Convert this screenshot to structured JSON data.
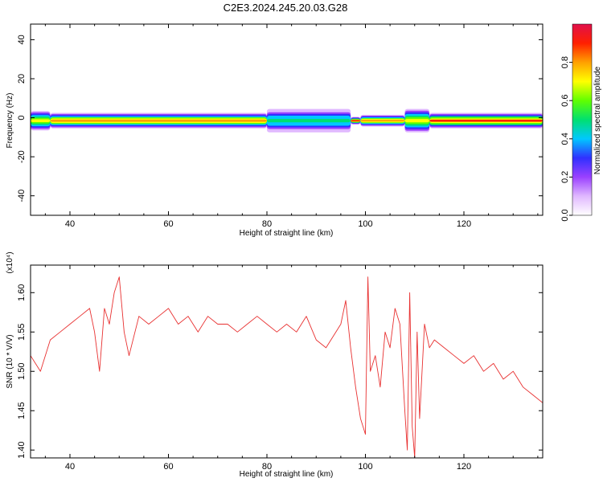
{
  "figure_title": "C2E3.2024.245.20.03.G28",
  "chart_data": [
    {
      "type": "heatmap",
      "xlabel": "Height of straight line (km)",
      "ylabel": "Frequency (Hz)",
      "xlim": [
        32,
        136
      ],
      "ylim": [
        -50,
        48
      ],
      "x_ticks": [
        40,
        60,
        80,
        100,
        120
      ],
      "y_ticks": [
        -40,
        -20,
        0,
        20,
        40
      ],
      "colorbar": {
        "label": "Normalized spectral amplitude",
        "range": [
          0,
          1
        ],
        "ticks": [
          0.0,
          0.2,
          0.4,
          0.6,
          0.8
        ],
        "tick_labels": [
          "0.0",
          "0.2",
          "0.4",
          "0.6",
          "0.8"
        ],
        "colormap": [
          "#ffffff",
          "#e0b8ff",
          "#9a40ff",
          "#3030ff",
          "#00c8ff",
          "#00e070",
          "#60ff00",
          "#ffff00",
          "#ffa000",
          "#ff2000",
          "#e0104a"
        ]
      },
      "ridge": {
        "frequency_hz": -1.5,
        "segments": [
          {
            "x": [
              32,
              36
            ],
            "spread_hz": 5,
            "peak": 0.75
          },
          {
            "x": [
              36,
              80
            ],
            "spread_hz": 4,
            "peak": 0.9
          },
          {
            "x": [
              80,
              97
            ],
            "spread_hz": 6,
            "peak": 0.55
          },
          {
            "x": [
              97,
              99
            ],
            "spread_hz": 2,
            "peak": 1.0
          },
          {
            "x": [
              99,
              108
            ],
            "spread_hz": 3,
            "peak": 0.92
          },
          {
            "x": [
              108,
              113
            ],
            "spread_hz": 6,
            "peak": 0.7
          },
          {
            "x": [
              113,
              136
            ],
            "spread_hz": 4,
            "peak": 0.95
          }
        ]
      }
    },
    {
      "type": "line",
      "xlabel": "Height of straight line (km)",
      "ylabel": "SNR (10 * V/V)",
      "multiplier": "(x10⁴)",
      "xlim": [
        32,
        136
      ],
      "ylim": [
        1.39,
        1.635
      ],
      "x_ticks": [
        40,
        60,
        80,
        100,
        120
      ],
      "y_ticks": [
        1.4,
        1.45,
        1.5,
        1.55,
        1.6
      ],
      "y_tick_labels": [
        "1.40",
        "1.45",
        "1.50",
        "1.55",
        "1.60"
      ],
      "series": [
        {
          "color": "#e83030",
          "x": [
            32,
            34,
            36,
            38,
            40,
            42,
            44,
            45,
            46,
            47,
            48,
            49,
            50,
            51,
            52,
            54,
            56,
            58,
            60,
            62,
            64,
            66,
            68,
            70,
            72,
            74,
            76,
            78,
            80,
            82,
            84,
            86,
            88,
            90,
            92,
            94,
            95,
            96,
            97,
            98,
            99,
            100,
            100.5,
            101,
            102,
            103,
            104,
            105,
            106,
            107,
            108,
            108.5,
            109,
            109.5,
            110,
            110.5,
            111,
            112,
            113,
            114,
            116,
            118,
            120,
            122,
            124,
            126,
            128,
            130,
            132,
            134,
            136
          ],
          "y": [
            1.52,
            1.5,
            1.54,
            1.55,
            1.56,
            1.57,
            1.58,
            1.55,
            1.5,
            1.58,
            1.56,
            1.6,
            1.62,
            1.55,
            1.52,
            1.57,
            1.56,
            1.57,
            1.58,
            1.56,
            1.57,
            1.55,
            1.57,
            1.56,
            1.56,
            1.55,
            1.56,
            1.57,
            1.56,
            1.55,
            1.56,
            1.55,
            1.57,
            1.54,
            1.53,
            1.55,
            1.56,
            1.59,
            1.53,
            1.48,
            1.44,
            1.42,
            1.62,
            1.5,
            1.52,
            1.48,
            1.55,
            1.53,
            1.58,
            1.56,
            1.45,
            1.4,
            1.6,
            1.43,
            1.39,
            1.55,
            1.44,
            1.56,
            1.53,
            1.54,
            1.53,
            1.52,
            1.51,
            1.52,
            1.5,
            1.51,
            1.49,
            1.5,
            1.48,
            1.47,
            1.46
          ]
        }
      ]
    }
  ]
}
